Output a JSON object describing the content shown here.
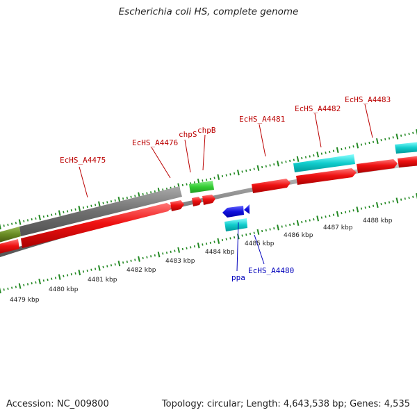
{
  "title": "Escherichia coli HS, complete genome",
  "footer": {
    "accession": "Accession: NC_009800",
    "summary": "Topology: circular; Length: 4,643,538 bp; Genes: 4,535"
  },
  "colors": {
    "cds": "#ee1111",
    "gray": "#707070",
    "green": "#33cc33",
    "olive": "#668822",
    "cyan": "#11cccc",
    "blue": "#1111dd",
    "tick": "#228822",
    "label_red": "#bb0000",
    "label_blue": "#0000bb"
  },
  "kbp_labels": [
    "4479 kbp",
    "4480 kbp",
    "4481 kbp",
    "4482 kbp",
    "4483 kbp",
    "4484 kbp",
    "4485 kbp",
    "4486 kbp",
    "4487 kbp",
    "4488 kbp"
  ],
  "gene_labels": [
    {
      "text": "EcHS_A4475",
      "color": "red"
    },
    {
      "text": "EcHS_A4476",
      "color": "red"
    },
    {
      "text": "chpS",
      "color": "red"
    },
    {
      "text": "chpB",
      "color": "red"
    },
    {
      "text": "EcHS_A4481",
      "color": "red"
    },
    {
      "text": "EcHS_A4482",
      "color": "red"
    },
    {
      "text": "EcHS_A4483",
      "color": "red"
    },
    {
      "text": "ppa",
      "color": "blue"
    },
    {
      "text": "EcHS_A4480",
      "color": "blue"
    }
  ]
}
